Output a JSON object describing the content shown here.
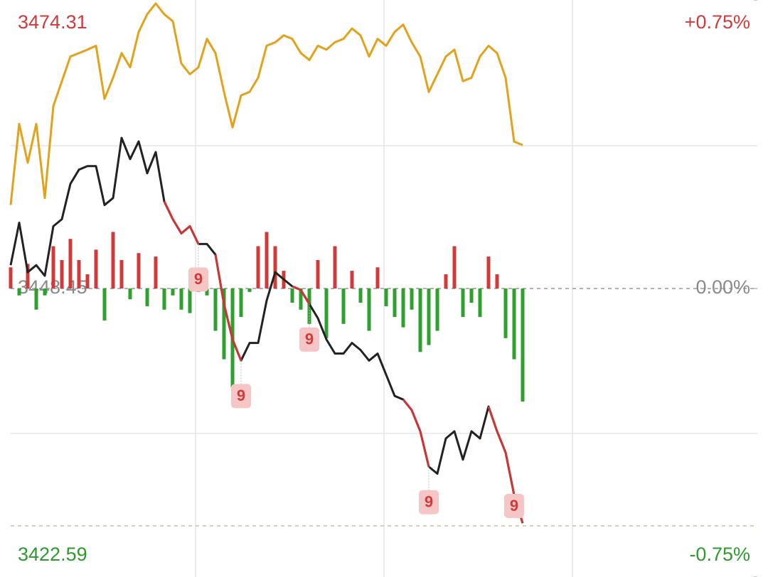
{
  "chart_data": {
    "type": "line",
    "ylim": [
      3422.59,
      3474.31
    ],
    "yticks": [
      3422.59,
      3448.45,
      3474.31
    ],
    "y2lim": [
      -0.75,
      0.75
    ],
    "y2ticks": [
      {
        "value": -0.75,
        "label": "-0.75%"
      },
      {
        "value": 0,
        "label": "0.00%"
      },
      {
        "value": 0.75,
        "label": "+0.75%"
      }
    ],
    "tick_colors": [
      "#2e9a2e",
      "#8a8a8a",
      "#d23a3a"
    ],
    "up_color": "#d23a3a",
    "down_color": "#2ea02e",
    "series": [
      {
        "color": "#222222",
        "values": [
          3450.54,
          3454.35,
          3449.91,
          3450.54,
          3449.59,
          3454.03,
          3454.66,
          3457.83,
          3459.1,
          3459.42,
          3459.42,
          3455.93,
          3456.56,
          3461.95,
          3460.05,
          3461.63,
          3458.78,
          3460.68,
          3456.25,
          3454.66,
          3453.39,
          3454.03,
          3452.44,
          3452.44,
          3451.49,
          3447.06,
          3443.89,
          3441.99,
          3443.57,
          3443.57,
          3447.37,
          3449.91,
          3449.27,
          3448.64,
          3448.32,
          3447.06,
          3445.79,
          3443.89,
          3442.62,
          3442.62,
          3443.57,
          3442.94,
          3441.99,
          3442.62,
          3440.72,
          3438.82,
          3438.5,
          3437.55,
          3435.65,
          3432.48,
          3431.85,
          3435.01,
          3435.65,
          3433.11,
          3435.65,
          3435.01,
          3437.87,
          3435.65,
          3433.75,
          3429.94,
          3427.41
        ]
      },
      {
        "color": "#d03535",
        "values": [
          null,
          null,
          null,
          null,
          null,
          null,
          null,
          null,
          null,
          null,
          null,
          null,
          null,
          null,
          null,
          null,
          null,
          null,
          3456.25,
          3454.66,
          3453.39,
          3454.03,
          3452.44,
          null,
          3451.49,
          3447.06,
          3443.89,
          3441.99,
          null,
          null,
          null,
          null,
          null,
          3448.64,
          3448.32,
          3447.06,
          null,
          null,
          null,
          null,
          null,
          null,
          null,
          null,
          null,
          null,
          3438.5,
          3437.55,
          3435.65,
          3432.48,
          null,
          null,
          null,
          null,
          null,
          null,
          3437.87,
          3435.65,
          3433.75,
          3429.94,
          3427.41
        ]
      },
      {
        "color": "#e3a21a",
        "axis": "y2",
        "values": [
          0.217,
          0.428,
          0.327,
          0.428,
          0.235,
          0.474,
          0.539,
          0.603,
          0.612,
          0.621,
          0.631,
          0.493,
          0.548,
          0.612,
          0.575,
          0.667,
          0.713,
          0.741,
          0.713,
          0.695,
          0.585,
          0.557,
          0.575,
          0.649,
          0.612,
          0.511,
          0.419,
          0.502,
          0.511,
          0.548,
          0.631,
          0.64,
          0.658,
          0.649,
          0.612,
          0.594,
          0.631,
          0.621,
          0.64,
          0.649,
          0.676,
          0.658,
          0.603,
          0.649,
          0.631,
          0.667,
          0.686,
          0.64,
          0.603,
          0.511,
          0.557,
          0.603,
          0.621,
          0.539,
          0.548,
          0.603,
          0.631,
          0.612,
          0.548,
          0.382,
          0.373
        ]
      },
      {
        "type": "bar",
        "axis": "y2",
        "values": [
          0.055,
          -0.018,
          0.064,
          -0.055,
          -0.018,
          0.11,
          0.074,
          0.129,
          0.074,
          0.037,
          0.101,
          -0.083,
          0.147,
          0.074,
          -0.028,
          0.092,
          -0.046,
          0.083,
          -0.055,
          -0.018,
          -0.055,
          -0.064,
          -0.009,
          -0.018,
          -0.11,
          -0.184,
          -0.257,
          -0.074,
          -0.009,
          0.11,
          0.147,
          0.11,
          0.046,
          -0.037,
          -0.055,
          -0.092,
          0.074,
          -0.129,
          0.11,
          -0.092,
          0.046,
          -0.037,
          -0.11,
          0.055,
          -0.046,
          -0.074,
          -0.101,
          -0.055,
          -0.165,
          -0.147,
          -0.11,
          0.037,
          0.11,
          -0.074,
          -0.037,
          -0.074,
          0.083,
          0.037,
          -0.129,
          -0.184,
          -0.294
        ]
      }
    ],
    "annotations": [
      {
        "text": "9",
        "index": 22
      },
      {
        "text": "9",
        "index": 27
      },
      {
        "text": "9",
        "index": 35
      },
      {
        "text": "9",
        "index": 49
      },
      {
        "text": "9",
        "index": 59
      }
    ]
  }
}
